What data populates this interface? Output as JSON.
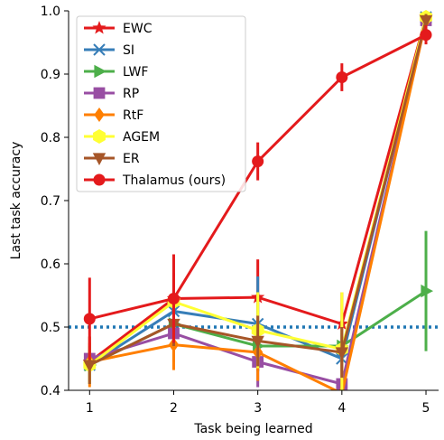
{
  "chart_data": {
    "type": "line",
    "title": "",
    "xlabel": "Task being learned",
    "ylabel": "Last task accuracy",
    "x": [
      1,
      2,
      3,
      4,
      5
    ],
    "xticks": [
      "1",
      "2",
      "3",
      "4",
      "5"
    ],
    "xlim": [
      0.75,
      5.15
    ],
    "ylim": [
      0.4,
      1.0
    ],
    "yticks": [
      "0.4",
      "0.5",
      "0.6",
      "0.7",
      "0.8",
      "0.9",
      "1.0"
    ],
    "reference_line": {
      "y": 0.5,
      "style": "dotted",
      "color": "#1f77b4"
    },
    "legend_position": "top-left",
    "grid": false,
    "series": [
      {
        "name": "EWC",
        "color": "#e41a1c",
        "marker": "star",
        "values": [
          0.445,
          0.545,
          0.547,
          0.505,
          0.99
        ],
        "errors": [
          0.03,
          0.04,
          0.06,
          0.05,
          0.01
        ]
      },
      {
        "name": "SI",
        "color": "#377eb8",
        "marker": "x",
        "values": [
          0.44,
          0.525,
          0.505,
          0.45,
          0.99
        ],
        "errors": [
          0.03,
          0.05,
          0.075,
          0.04,
          0.01
        ]
      },
      {
        "name": "LWF",
        "color": "#4daf4a",
        "marker": "triangle-right",
        "values": [
          0.44,
          0.505,
          0.47,
          0.47,
          0.557
        ],
        "errors": [
          0.03,
          0.04,
          0.04,
          0.04,
          0.095
        ]
      },
      {
        "name": "RP",
        "color": "#984ea3",
        "marker": "square",
        "values": [
          0.45,
          0.49,
          0.445,
          0.41,
          0.985
        ],
        "errors": [
          0.035,
          0.045,
          0.04,
          0.04,
          0.01
        ]
      },
      {
        "name": "RtF",
        "color": "#ff7f00",
        "marker": "diamond",
        "values": [
          0.445,
          0.472,
          0.46,
          0.395,
          0.985
        ],
        "errors": [
          0.04,
          0.04,
          0.045,
          0.06,
          0.01
        ]
      },
      {
        "name": "AGEM",
        "color": "#ffff33",
        "marker": "hexagon",
        "values": [
          0.44,
          0.54,
          0.495,
          0.465,
          0.99
        ],
        "errors": [
          0.03,
          0.04,
          0.06,
          0.09,
          0.01
        ]
      },
      {
        "name": "ER",
        "color": "#a65628",
        "marker": "triangle-down",
        "values": [
          0.44,
          0.505,
          0.478,
          0.46,
          0.985
        ],
        "errors": [
          0.03,
          0.035,
          0.04,
          0.04,
          0.01
        ]
      },
      {
        "name": "Thalamus (ours)",
        "color": "#e41a1c",
        "marker": "circle",
        "values": [
          0.513,
          0.545,
          0.762,
          0.895,
          0.962
        ],
        "errors": [
          0.065,
          0.07,
          0.03,
          0.022,
          0.015
        ]
      }
    ]
  }
}
